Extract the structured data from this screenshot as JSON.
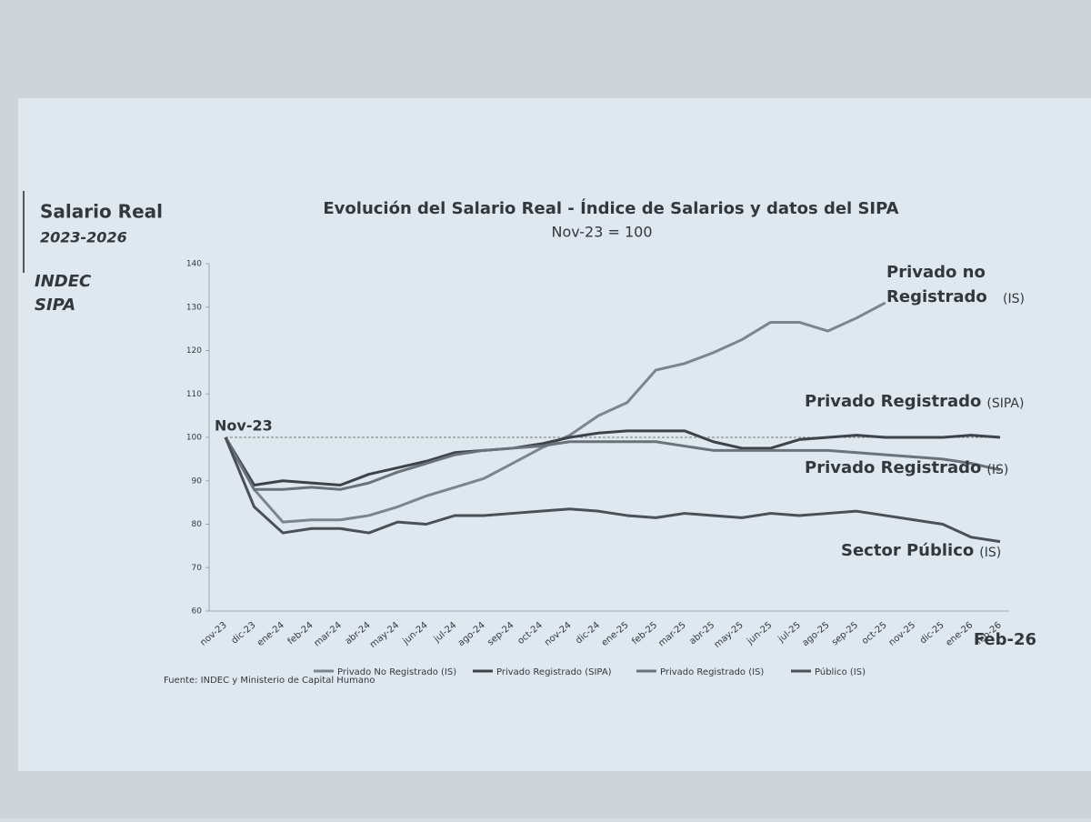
{
  "chart_data": {
    "type": "line",
    "title": "Evolución del Salario Real - Índice de Salarios y datos del SIPA",
    "subtitle": "Nov-23 = 100",
    "sidebar": {
      "title": "Salario Real",
      "period": "2023-2026",
      "sources": [
        "INDEC",
        "SIPA"
      ]
    },
    "source": "Fuente: INDEC y Ministerio de Capital Humano",
    "categories": [
      "nov-23",
      "dic-23",
      "ene-24",
      "feb-24",
      "mar-24",
      "abr-24",
      "may-24",
      "jun-24",
      "jul-24",
      "ago-24",
      "sep-24",
      "oct-24",
      "nov-24",
      "dic-24",
      "ene-25",
      "feb-25",
      "mar-25",
      "abr-25",
      "may-25",
      "jun-25",
      "jul-25",
      "ago-25",
      "sep-25",
      "oct-25",
      "nov-25",
      "dic-25",
      "ene-26",
      "feb-26"
    ],
    "ylim": [
      60,
      140
    ],
    "yticks": [
      60,
      70,
      80,
      90,
      100,
      110,
      120,
      130,
      140
    ],
    "reference_line": 100,
    "start_label": "Nov-23",
    "end_label": "Feb-26",
    "series": [
      {
        "name": "Privado No Registrado (IS)",
        "label": "Privado no Registrado",
        "label_note": "(IS)",
        "color": "#7d858c",
        "values": [
          100,
          88,
          80.5,
          81,
          81,
          82,
          84,
          86.5,
          88.5,
          90.5,
          94,
          97.5,
          100.5,
          105,
          108,
          115.5,
          117,
          119.5,
          122.5,
          126.5,
          126.5,
          124.5,
          127.5,
          131,
          null,
          null,
          null,
          null
        ]
      },
      {
        "name": "Privado Registrado (SIPA)",
        "label": "Privado Registrado",
        "label_note": "(SIPA)",
        "color": "#3e4349",
        "values": [
          100,
          89,
          90,
          89.5,
          89,
          91.5,
          93,
          94.5,
          96.5,
          97,
          97.5,
          98.5,
          100,
          101,
          101.5,
          101.5,
          101.5,
          99,
          97.5,
          97.5,
          99.5,
          100,
          100.5,
          100,
          100,
          100,
          100.5,
          100
        ]
      },
      {
        "name": "Privado Registrado (IS)",
        "label": "Privado Registrado",
        "label_note": "(IS)",
        "color": "#6b737a",
        "values": [
          100,
          88,
          88,
          88.5,
          88,
          89.5,
          92,
          94,
          96,
          97,
          97.5,
          98,
          99,
          99,
          99,
          99,
          98,
          97,
          97,
          97,
          97,
          97,
          96.5,
          96,
          95.5,
          95,
          94,
          92.5
        ]
      },
      {
        "name": "Público (IS)",
        "label": "Sector Público",
        "label_note": "(IS)",
        "color": "#4a5056",
        "values": [
          100,
          84,
          78,
          79,
          79,
          78,
          80.5,
          80,
          82,
          82,
          82.5,
          83,
          83.5,
          83,
          82,
          81.5,
          82.5,
          82,
          81.5,
          82.5,
          82,
          82.5,
          83,
          82,
          81,
          80,
          77,
          76
        ]
      }
    ]
  }
}
